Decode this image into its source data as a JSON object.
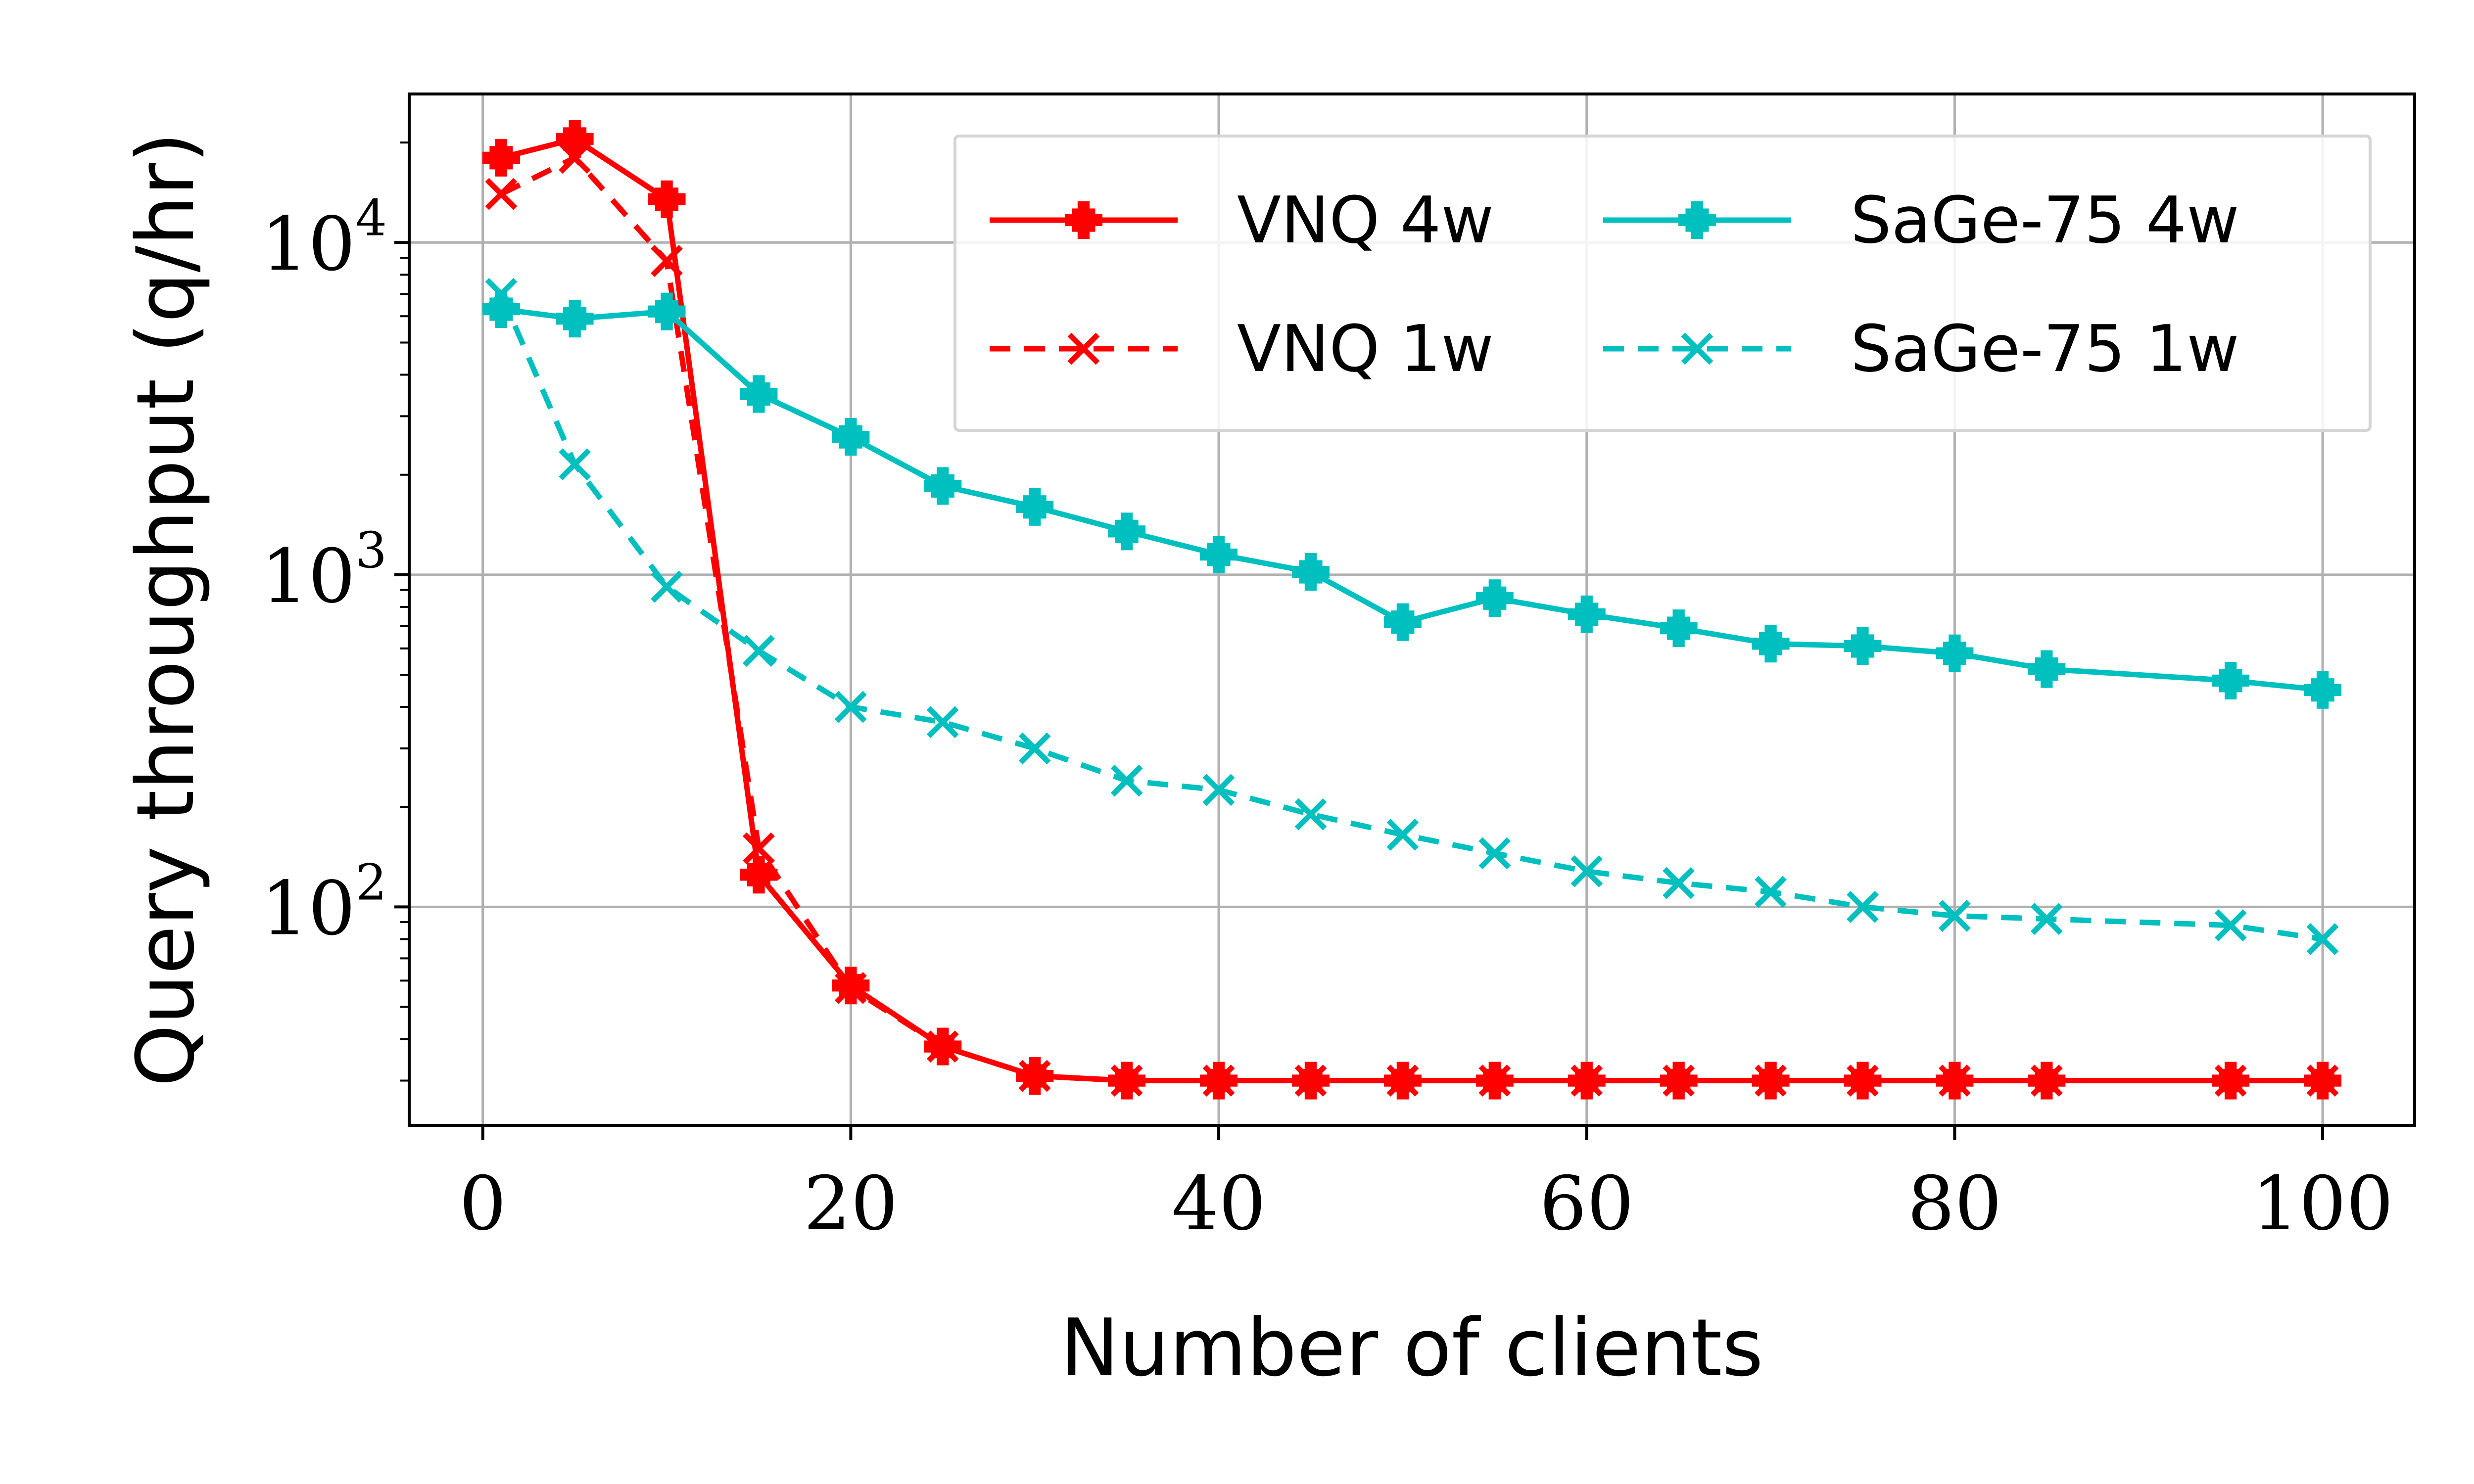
{
  "chart_data": {
    "type": "line",
    "title": "",
    "xlabel": "Number of clients",
    "ylabel": "Query throughput (q/hr)",
    "xlim": [
      -4,
      105
    ],
    "ylim": [
      22,
      28000
    ],
    "yscale": "log",
    "grid": true,
    "legend_position": "top-right",
    "legend_columns": 2,
    "x_ticks": [
      {
        "value": 0,
        "label": "0"
      },
      {
        "value": 20,
        "label": "20"
      },
      {
        "value": 40,
        "label": "40"
      },
      {
        "value": 60,
        "label": "60"
      },
      {
        "value": 80,
        "label": "80"
      },
      {
        "value": 100,
        "label": "100"
      }
    ],
    "y_ticks": [
      {
        "value": 100,
        "base": "10",
        "exp": "2"
      },
      {
        "value": 1000,
        "base": "10",
        "exp": "3"
      },
      {
        "value": 10000,
        "base": "10",
        "exp": "4"
      }
    ],
    "series": [
      {
        "name": "VNQ 4w",
        "color": "#ff0000",
        "line_style": "solid",
        "marker": "plus-square",
        "x": [
          1,
          5,
          10,
          15,
          20,
          25,
          30,
          35,
          40,
          45,
          50,
          55,
          60,
          65,
          70,
          75,
          80,
          85,
          95,
          100
        ],
        "values": [
          18000,
          20500,
          13500,
          125,
          58,
          38,
          31,
          30,
          30,
          30,
          30,
          30,
          30,
          30,
          30,
          30,
          30,
          30,
          30,
          30
        ]
      },
      {
        "name": "VNQ 1w",
        "color": "#ff0000",
        "line_style": "dashed",
        "marker": "x",
        "x": [
          1,
          5,
          10,
          15,
          20,
          25,
          30,
          35,
          40,
          45,
          50,
          55,
          60,
          65,
          70,
          75,
          80,
          85,
          95,
          100
        ],
        "values": [
          14000,
          18000,
          8800,
          150,
          57,
          38,
          31,
          30,
          30,
          30,
          30,
          30,
          30,
          30,
          30,
          30,
          30,
          30,
          30,
          30
        ]
      },
      {
        "name": "SaGe-75 4w",
        "color": "#00bfbf",
        "line_style": "solid",
        "marker": "plus-square",
        "x": [
          1,
          5,
          10,
          15,
          20,
          25,
          30,
          35,
          40,
          45,
          50,
          55,
          60,
          65,
          70,
          75,
          80,
          85,
          95,
          100
        ],
        "values": [
          6300,
          5900,
          6200,
          3500,
          2600,
          1850,
          1600,
          1350,
          1150,
          1020,
          720,
          850,
          760,
          690,
          620,
          610,
          580,
          520,
          480,
          450
        ]
      },
      {
        "name": "SaGe-75 1w",
        "color": "#00bfbf",
        "line_style": "dashed",
        "marker": "x",
        "x": [
          1,
          5,
          10,
          15,
          20,
          25,
          30,
          35,
          40,
          45,
          50,
          55,
          60,
          65,
          70,
          75,
          80,
          85,
          95,
          100
        ],
        "values": [
          7000,
          2150,
          920,
          590,
          400,
          360,
          300,
          240,
          225,
          190,
          165,
          145,
          128,
          118,
          111,
          100,
          94,
          92,
          88,
          80
        ]
      }
    ]
  }
}
